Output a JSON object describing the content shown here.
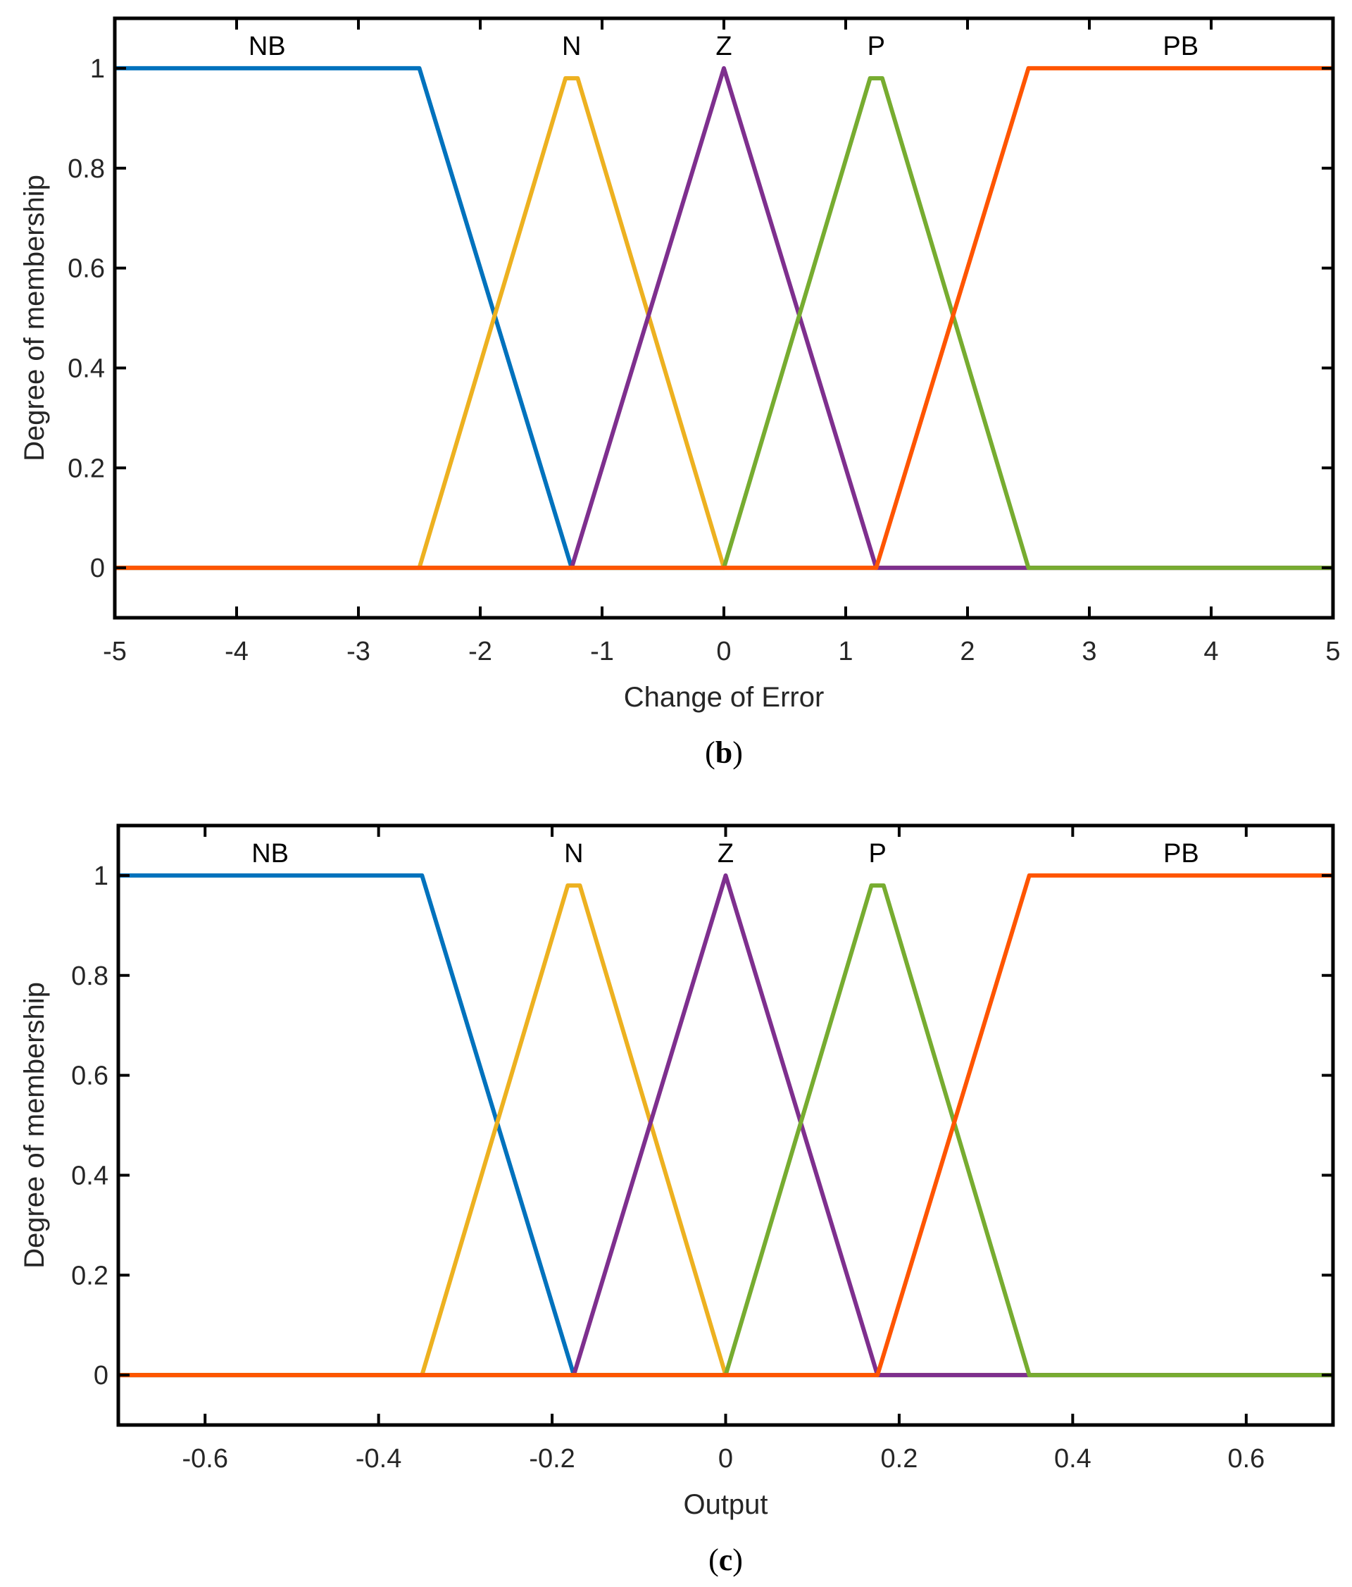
{
  "chart_data": [
    {
      "type": "line",
      "caption_letter": "b",
      "xlabel": "Change of Error",
      "ylabel": "Degree of membership",
      "xlim": [
        -5,
        5
      ],
      "ylim": [
        -0.1,
        1.1
      ],
      "xticks": [
        -5,
        -4,
        -3,
        -2,
        -1,
        0,
        1,
        2,
        3,
        4,
        5
      ],
      "xtick_labels": [
        "-5",
        "-4",
        "-3",
        "-2",
        "-1",
        "0",
        "1",
        "2",
        "3",
        "4",
        "5"
      ],
      "yticks": [
        0,
        0.2,
        0.4,
        0.6,
        0.8,
        1
      ],
      "ytick_labels": [
        "0",
        "0.2",
        "0.4",
        "0.6",
        "0.8",
        "1"
      ],
      "grid": false,
      "series": [
        {
          "name": "NB",
          "color": "#0072BD",
          "x": [
            -5,
            -2.5,
            -1.25,
            5
          ],
          "y": [
            1,
            1,
            0,
            0
          ]
        },
        {
          "name": "N",
          "color": "#EDB120",
          "x": [
            -5,
            -2.5,
            -1.3,
            -1.2,
            0,
            5
          ],
          "y": [
            0,
            0,
            0.98,
            0.98,
            0,
            0
          ]
        },
        {
          "name": "Z",
          "color": "#7E2F8E",
          "x": [
            -5,
            -1.25,
            0,
            1.25,
            5
          ],
          "y": [
            0,
            0,
            1,
            0,
            0
          ]
        },
        {
          "name": "P",
          "color": "#77AC30",
          "x": [
            -5,
            0,
            1.2,
            1.3,
            2.5,
            5
          ],
          "y": [
            0,
            0,
            0.98,
            0.98,
            0,
            0
          ]
        },
        {
          "name": "PB",
          "color": "#FF5500",
          "x": [
            -5,
            1.25,
            2.5,
            5
          ],
          "y": [
            0,
            0,
            1,
            1
          ]
        }
      ],
      "mf_labels": [
        {
          "text": "NB",
          "x": -3.75
        },
        {
          "text": "N",
          "x": -1.25
        },
        {
          "text": "Z",
          "x": 0
        },
        {
          "text": "P",
          "x": 1.25
        },
        {
          "text": "PB",
          "x": 3.75
        }
      ]
    },
    {
      "type": "line",
      "caption_letter": "c",
      "xlabel": "Output",
      "ylabel": "Degree of membership",
      "xlim": [
        -0.7,
        0.7
      ],
      "ylim": [
        -0.1,
        1.1
      ],
      "xticks": [
        -0.6,
        -0.4,
        -0.2,
        0,
        0.2,
        0.4,
        0.6
      ],
      "xtick_labels": [
        "-0.6",
        "-0.4",
        "-0.2",
        "0",
        "0.2",
        "0.4",
        "0.6"
      ],
      "yticks": [
        0,
        0.2,
        0.4,
        0.6,
        0.8,
        1
      ],
      "ytick_labels": [
        "0",
        "0.2",
        "0.4",
        "0.6",
        "0.8",
        "1"
      ],
      "grid": false,
      "series": [
        {
          "name": "NB",
          "color": "#0072BD",
          "x": [
            -0.7,
            -0.35,
            -0.175,
            0.7
          ],
          "y": [
            1,
            1,
            0,
            0
          ]
        },
        {
          "name": "N",
          "color": "#EDB120",
          "x": [
            -0.7,
            -0.35,
            -0.182,
            -0.168,
            0,
            0.7
          ],
          "y": [
            0,
            0,
            0.98,
            0.98,
            0,
            0
          ]
        },
        {
          "name": "Z",
          "color": "#7E2F8E",
          "x": [
            -0.7,
            -0.175,
            0,
            0.175,
            0.7
          ],
          "y": [
            0,
            0,
            1,
            0,
            0
          ]
        },
        {
          "name": "P",
          "color": "#77AC30",
          "x": [
            -0.7,
            0,
            0.168,
            0.182,
            0.35,
            0.7
          ],
          "y": [
            0,
            0,
            0.98,
            0.98,
            0,
            0
          ]
        },
        {
          "name": "PB",
          "color": "#FF5500",
          "x": [
            -0.7,
            0.175,
            0.35,
            0.7
          ],
          "y": [
            0,
            0,
            1,
            1
          ]
        }
      ],
      "mf_labels": [
        {
          "text": "NB",
          "x": -0.525
        },
        {
          "text": "N",
          "x": -0.175
        },
        {
          "text": "Z",
          "x": 0
        },
        {
          "text": "P",
          "x": 0.175
        },
        {
          "text": "PB",
          "x": 0.525
        }
      ]
    }
  ]
}
